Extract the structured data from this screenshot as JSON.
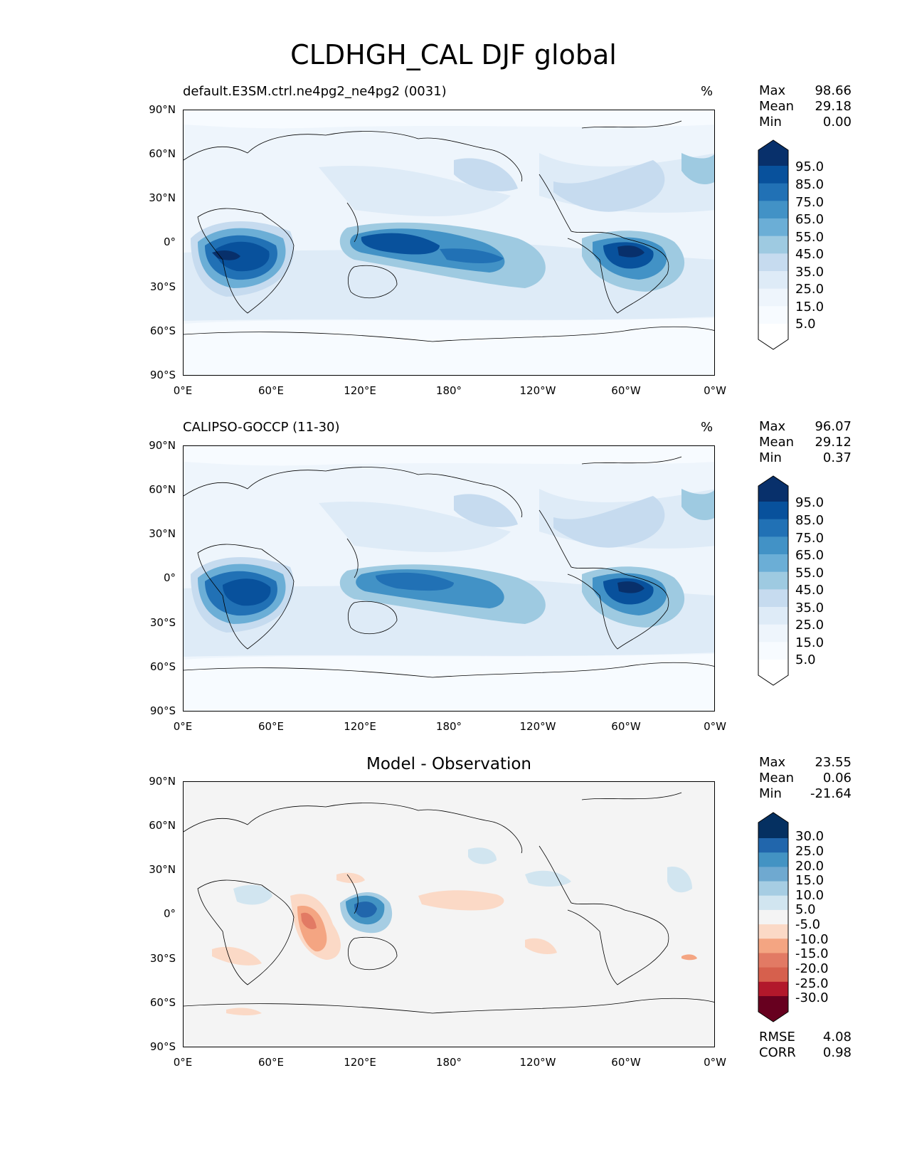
{
  "title": "CLDHGH_CAL DJF global",
  "axes": {
    "lat_ticks": [
      "90°N",
      "60°N",
      "30°N",
      "0°",
      "30°S",
      "60°S",
      "90°S"
    ],
    "lon_ticks": [
      "0°E",
      "60°E",
      "120°E",
      "180°",
      "120°W",
      "60°W",
      "0°W"
    ]
  },
  "panels": [
    {
      "title_left": "default.E3SM.ctrl.ne4pg2_ne4pg2 (0031)",
      "units": "%",
      "stats": [
        {
          "label": "Max",
          "value": "98.66"
        },
        {
          "label": "Mean",
          "value": "29.18"
        },
        {
          "label": "Min",
          "value": "0.00"
        }
      ],
      "colorbar_labels": [
        "95.0",
        "85.0",
        "75.0",
        "65.0",
        "55.0",
        "45.0",
        "35.0",
        "25.0",
        "15.0",
        "5.0"
      ],
      "colors": [
        "#08306b",
        "#08519c",
        "#2171b5",
        "#4292c6",
        "#6baed6",
        "#9ecae1",
        "#c6dbef",
        "#deebf7",
        "#eef5fc",
        "#f7fbff",
        "#ffffff"
      ]
    },
    {
      "title_left": "CALIPSO-GOCCP (11-30)",
      "units": "%",
      "stats": [
        {
          "label": "Max",
          "value": "96.07"
        },
        {
          "label": "Mean",
          "value": "29.12"
        },
        {
          "label": "Min",
          "value": "0.37"
        }
      ],
      "colorbar_labels": [
        "95.0",
        "85.0",
        "75.0",
        "65.0",
        "55.0",
        "45.0",
        "35.0",
        "25.0",
        "15.0",
        "5.0"
      ],
      "colors": [
        "#08306b",
        "#08519c",
        "#2171b5",
        "#4292c6",
        "#6baed6",
        "#9ecae1",
        "#c6dbef",
        "#deebf7",
        "#eef5fc",
        "#f7fbff",
        "#ffffff"
      ]
    },
    {
      "title_center": "Model - Observation",
      "stats": [
        {
          "label": "Max",
          "value": "23.55"
        },
        {
          "label": "Mean",
          "value": "0.06"
        },
        {
          "label": "Min",
          "value": "-21.64"
        }
      ],
      "colorbar_labels": [
        "30.0",
        "25.0",
        "20.0",
        "15.0",
        "10.0",
        "5.0",
        "-5.0",
        "-10.0",
        "-15.0",
        "-20.0",
        "-25.0",
        "-30.0"
      ],
      "colors": [
        "#053061",
        "#2166ac",
        "#4393c3",
        "#6fa9d0",
        "#a6cde3",
        "#d1e5f0",
        "#f4f4f4",
        "#fbd9c6",
        "#f4a582",
        "#e27a64",
        "#d6604d",
        "#b2182b",
        "#67001f"
      ],
      "metrics": [
        {
          "label": "RMSE",
          "value": "4.08"
        },
        {
          "label": "CORR",
          "value": "0.98"
        }
      ]
    }
  ]
}
